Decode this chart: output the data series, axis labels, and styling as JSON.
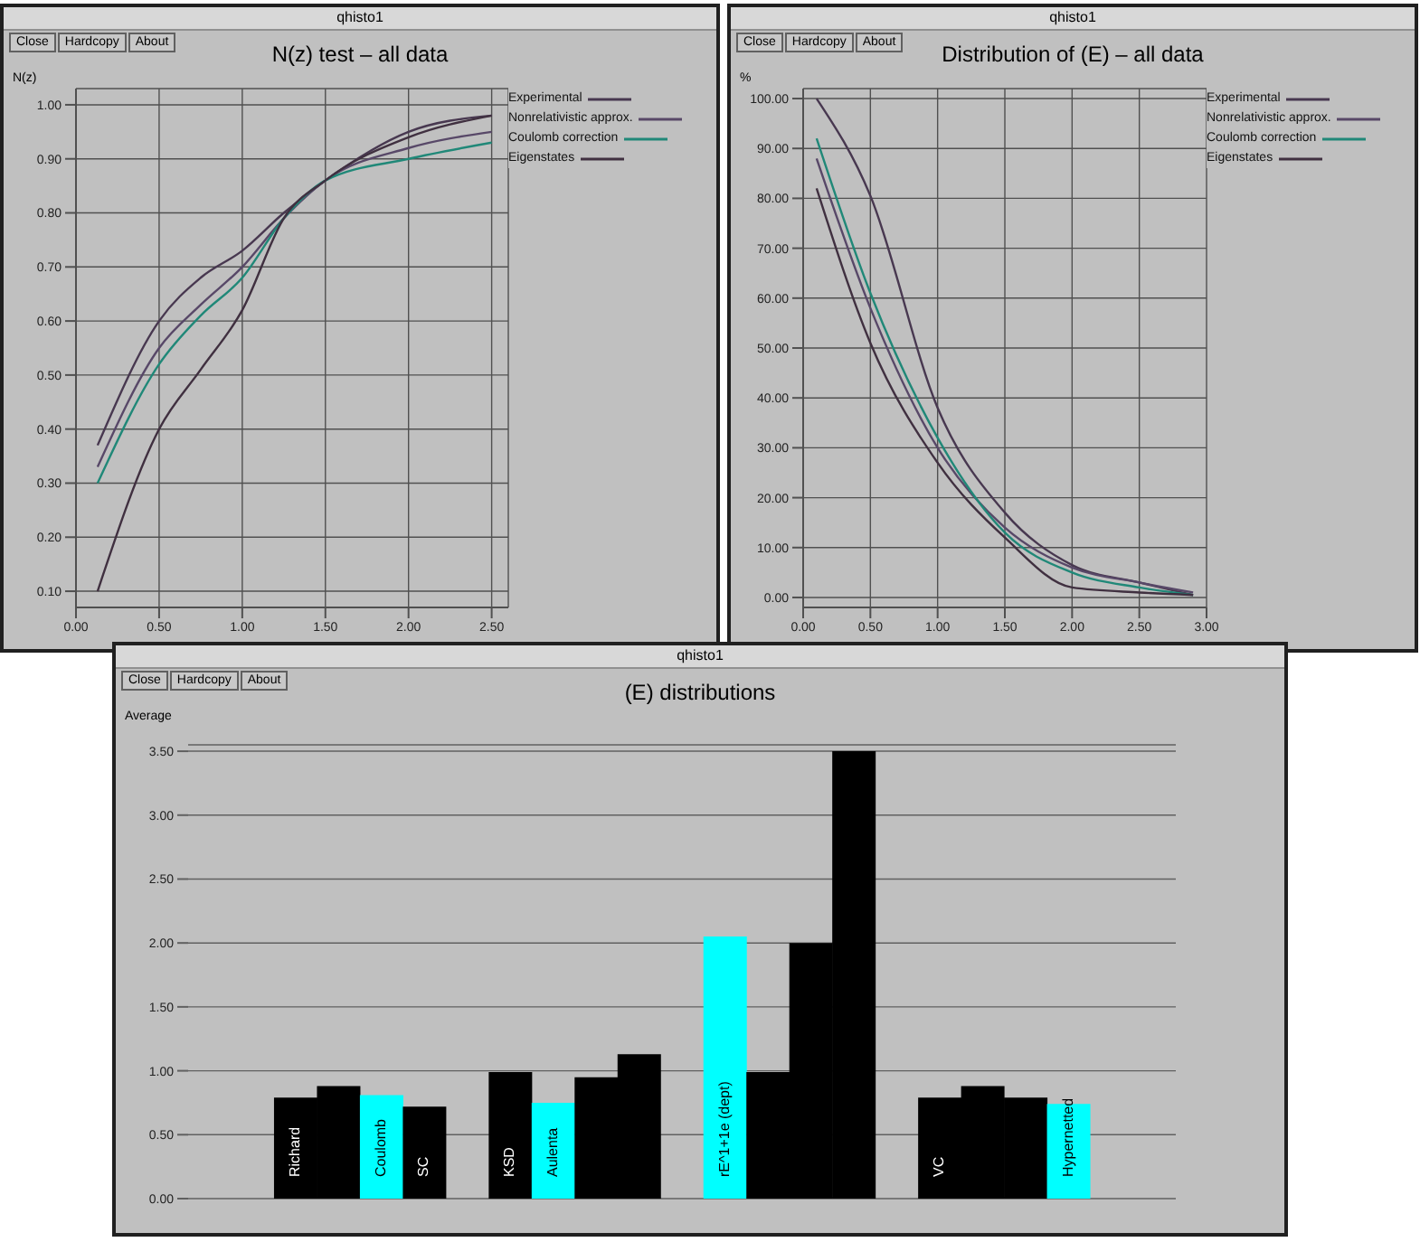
{
  "chart_data": [
    {
      "type": "line",
      "title": "N(z) test – all data",
      "ylabel": "N(z)",
      "annotations": [
        "qhisto1",
        "Close",
        "Hardcopy",
        "About"
      ],
      "x": [
        0.13,
        0.5,
        0.75,
        1.0,
        1.25,
        1.5,
        2.0,
        2.5
      ],
      "series": [
        {
          "name": "Experimental",
          "color": "#483850",
          "values": [
            0.37,
            0.6,
            0.68,
            0.73,
            0.8,
            0.86,
            0.95,
            0.98
          ]
        },
        {
          "name": "Nonrelativistic approx.",
          "color": "#584868",
          "values": [
            0.33,
            0.55,
            0.63,
            0.7,
            0.79,
            0.86,
            0.92,
            0.95
          ]
        },
        {
          "name": "Coulomb correction",
          "color": "#208878",
          "values": [
            0.3,
            0.52,
            0.61,
            0.68,
            0.79,
            0.86,
            0.9,
            0.93
          ]
        },
        {
          "name": "Eigenstates",
          "color": "#403040",
          "values": [
            0.1,
            0.4,
            0.51,
            0.62,
            0.79,
            0.86,
            0.94,
            0.98
          ]
        }
      ],
      "xlim": [
        0,
        2.6
      ],
      "xticks": [
        {
          "value": 0,
          "label": "0.00"
        },
        {
          "value": 0.5,
          "label": "0.50"
        },
        {
          "value": 1,
          "label": "1.00"
        },
        {
          "value": 1.5,
          "label": "1.50"
        },
        {
          "value": 2,
          "label": "2.00"
        },
        {
          "value": 2.5,
          "label": "2.50"
        }
      ],
      "ylim": [
        0.07,
        1.03
      ],
      "yticks": [
        {
          "value": 0.1,
          "label": "0.10"
        },
        {
          "value": 0.2,
          "label": "0.20"
        },
        {
          "value": 0.3,
          "label": "0.30"
        },
        {
          "value": 0.4,
          "label": "0.40"
        },
        {
          "value": 0.5,
          "label": "0.50"
        },
        {
          "value": 0.6,
          "label": "0.60"
        },
        {
          "value": 0.7,
          "label": "0.70"
        },
        {
          "value": 0.8,
          "label": "0.80"
        },
        {
          "value": 0.9,
          "label": "0.90"
        },
        {
          "value": 1,
          "label": "1.00"
        }
      ],
      "grid": true,
      "legend": "top right",
      "marker": "none",
      "line_style": "solid"
    },
    {
      "type": "line",
      "title": "Distribution of (E) – all data",
      "ylabel": "%",
      "annotations": [
        "qhisto1",
        "Close",
        "Hardcopy",
        "About"
      ],
      "x": [
        0.1,
        0.5,
        1.0,
        1.5,
        2.0,
        2.5,
        2.9
      ],
      "series": [
        {
          "name": "Experimental",
          "color": "#483850",
          "values": [
            100,
            80.5,
            38,
            17,
            6.5,
            3,
            0.5
          ]
        },
        {
          "name": "Nonrelativistic approx.",
          "color": "#584868",
          "values": [
            88,
            58,
            30,
            14,
            6,
            3,
            1
          ]
        },
        {
          "name": "Coulomb correction",
          "color": "#208878",
          "values": [
            92,
            61,
            32,
            13,
            5,
            2,
            0.5
          ]
        },
        {
          "name": "Eigenstates",
          "color": "#403040",
          "values": [
            82,
            51,
            27,
            12,
            2,
            1,
            0.5
          ]
        }
      ],
      "xlim": [
        0,
        3
      ],
      "xticks": [
        {
          "value": 0,
          "label": "0.00"
        },
        {
          "value": 0.5,
          "label": "0.50"
        },
        {
          "value": 1,
          "label": "1.00"
        },
        {
          "value": 1.5,
          "label": "1.50"
        },
        {
          "value": 2,
          "label": "2.00"
        },
        {
          "value": 2.5,
          "label": "2.50"
        },
        {
          "value": 3,
          "label": "3.00"
        }
      ],
      "ylim": [
        -2,
        102
      ],
      "yticks": [
        {
          "value": 0,
          "label": "0.00"
        },
        {
          "value": 10,
          "label": "10.00"
        },
        {
          "value": 20,
          "label": "20.00"
        },
        {
          "value": 30,
          "label": "30.00"
        },
        {
          "value": 40,
          "label": "40.00"
        },
        {
          "value": 50,
          "label": "50.00"
        },
        {
          "value": 60,
          "label": "60.00"
        },
        {
          "value": 70,
          "label": "70.00"
        },
        {
          "value": 80,
          "label": "80.00"
        },
        {
          "value": 90,
          "label": "90.00"
        },
        {
          "value": 100,
          "label": "100.00"
        }
      ],
      "grid": true,
      "legend": "top right",
      "marker": "none",
      "line_style": "solid"
    },
    {
      "type": "bar",
      "title": "(E) distributions",
      "ylabel": "Average",
      "annotations": [
        "qhisto1",
        "Close",
        "Hardcopy",
        "About"
      ],
      "categories": [
        null,
        null,
        "Richard",
        null,
        "Coulomb",
        "SC",
        null,
        "KSD",
        "Aulenta",
        null,
        null,
        null,
        "rE^1+1e (dept)",
        null,
        null,
        null,
        null,
        "VC",
        null,
        null,
        "Hypernetted",
        null,
        null
      ],
      "values": [
        null,
        null,
        0.79,
        0.88,
        0.81,
        0.72,
        null,
        0.99,
        0.75,
        0.95,
        1.13,
        null,
        2.05,
        0.99,
        2.0,
        3.5,
        null,
        0.79,
        0.88,
        0.79,
        0.74,
        null,
        null
      ],
      "colors": [
        null,
        null,
        "#000000",
        "#000000",
        "#00ffff",
        "#000000",
        null,
        "#000000",
        "#00ffff",
        "#000000",
        "#000000",
        null,
        "#00ffff",
        "#000000",
        "#000000",
        "#000000",
        null,
        "#000000",
        "#000000",
        "#000000",
        "#00ffff",
        null,
        null
      ],
      "ylim": [
        0,
        3.55
      ],
      "yticks": [
        {
          "value": 0,
          "label": "0.00"
        },
        {
          "value": 0.5,
          "label": "0.50"
        },
        {
          "value": 1,
          "label": "1.00"
        },
        {
          "value": 1.5,
          "label": "1.50"
        },
        {
          "value": 2,
          "label": "2.00"
        },
        {
          "value": 2.5,
          "label": "2.50"
        },
        {
          "value": 3,
          "label": "3.00"
        },
        {
          "value": 3.5,
          "label": "3.50"
        }
      ],
      "grid": "y",
      "tick_labels": "y"
    }
  ]
}
